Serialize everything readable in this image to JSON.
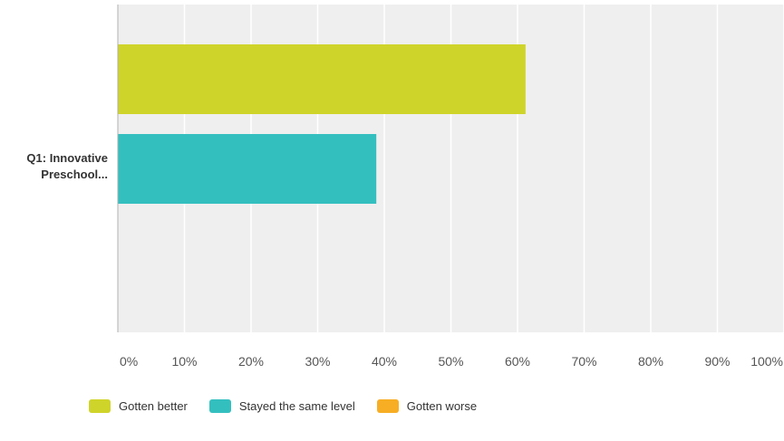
{
  "chart_data": {
    "type": "bar",
    "orientation": "horizontal",
    "categories": [
      "Q1: Innovative Preschool..."
    ],
    "category_label_lines": [
      "Q1: Innovative",
      "Preschool..."
    ],
    "series": [
      {
        "name": "Gotten better",
        "values": [
          61.2
        ],
        "color": "#cfd42a"
      },
      {
        "name": "Stayed the same level",
        "values": [
          38.8
        ],
        "color": "#34bfbf"
      },
      {
        "name": "Gotten worse",
        "values": [
          0
        ],
        "color": "#f7ae24"
      }
    ],
    "x_ticks": [
      "0%",
      "10%",
      "20%",
      "30%",
      "40%",
      "50%",
      "60%",
      "70%",
      "80%",
      "90%",
      "100%"
    ],
    "xlim": [
      0,
      100
    ],
    "grid": true,
    "legend_position": "bottom",
    "colors": {
      "plot_background": "#efefef",
      "grid": "#ffffff",
      "axis": "#b0b0b0",
      "text": "#333333"
    }
  }
}
